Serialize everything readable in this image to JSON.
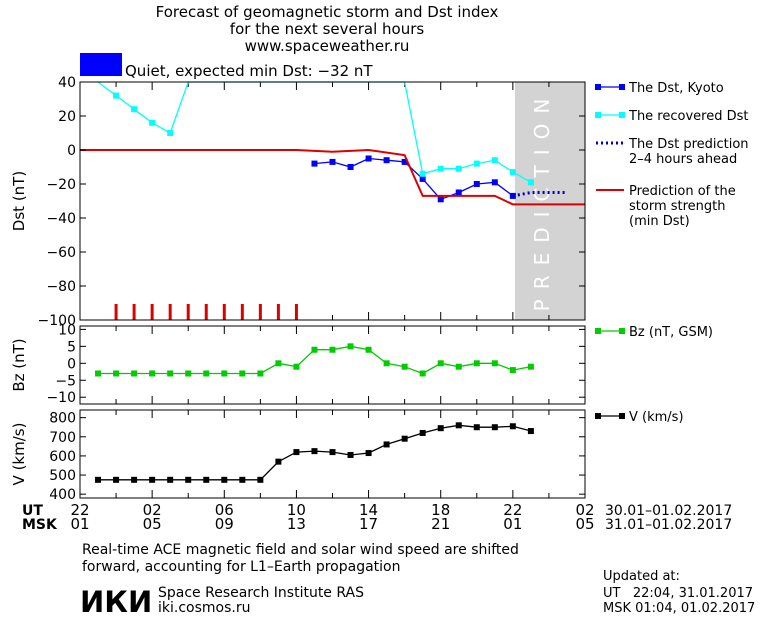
{
  "header": {
    "title_lines": [
      "Forecast of geomagnetic storm and Dst index",
      "for the next several hours",
      "www.spaceweather.ru"
    ],
    "status_text": "Quiet, expected min Dst: −32 nT",
    "status_color": "#0000ff"
  },
  "prediction_label": "PREDICTION",
  "time_axis": {
    "ut_label": "UT",
    "msk_label": "MSK",
    "ut_ticks": [
      "22",
      "02",
      "06",
      "10",
      "14",
      "18",
      "22",
      "02"
    ],
    "msk_ticks": [
      "01",
      "05",
      "09",
      "13",
      "17",
      "21",
      "01",
      "05"
    ],
    "ut_range": "30.01–01.02.2017",
    "msk_range": "31.01–01.02.2017"
  },
  "chart_data": [
    {
      "type": "line",
      "ylabel": "Dst (nT)",
      "ylim": [
        -100,
        40
      ],
      "yticks": [
        40,
        20,
        0,
        -20,
        -40,
        -60,
        -80,
        -100
      ],
      "xlim": [
        0,
        28
      ],
      "prediction_shade_x": [
        24,
        28
      ],
      "legend": {
        "placement": "right"
      },
      "series": [
        {
          "name": "The Dst, Kyoto",
          "color": "#0000ff",
          "style": "line-square",
          "x": [
            13,
            14,
            15,
            16,
            17,
            18,
            19,
            20,
            21,
            22,
            23,
            24
          ],
          "y": [
            -8,
            -7,
            -10,
            -5,
            -6,
            -7,
            -17,
            -29,
            -25,
            -20,
            -19,
            -27
          ]
        },
        {
          "name": "The recovered Dst",
          "color": "#00ffff",
          "style": "line-square",
          "x": [
            1,
            2,
            3,
            4,
            5,
            6,
            18,
            19,
            20,
            21,
            22,
            23,
            24,
            25
          ],
          "y": [
            42,
            32,
            24,
            16,
            10,
            44,
            44,
            -14,
            -11,
            -11,
            -8,
            -6,
            -13,
            -19
          ]
        },
        {
          "name": "The Dst prediction\n2–4 hours ahead",
          "color": "#0000cc",
          "style": "dotted",
          "x": [
            24,
            25,
            26,
            27
          ],
          "y": [
            -27,
            -25,
            -25,
            -25
          ]
        },
        {
          "name": "Prediction of the\nstorm strength\n(min Dst)",
          "color": "#dd0000",
          "style": "step",
          "x": [
            0,
            12,
            14,
            16,
            18,
            19,
            23,
            24,
            26,
            28
          ],
          "y": [
            0,
            0,
            -1,
            0,
            -3,
            -27,
            -27,
            -32,
            -32,
            -32
          ]
        }
      ],
      "storm_ticks": {
        "color": "#dd0000",
        "x": [
          2,
          3,
          4,
          5,
          6,
          7,
          8,
          9,
          10,
          11,
          12
        ]
      }
    },
    {
      "type": "line",
      "ylabel": "Bz (nT)",
      "ylim": [
        -12,
        11
      ],
      "yticks": [
        10,
        5,
        0,
        -5,
        -10
      ],
      "xlim": [
        0,
        28
      ],
      "series": [
        {
          "name": "Bz (nT, GSM)",
          "color": "#00cc00",
          "style": "line-square",
          "x": [
            1,
            2,
            3,
            4,
            5,
            6,
            7,
            8,
            9,
            10,
            11,
            12,
            13,
            14,
            15,
            16,
            17,
            18,
            19,
            20,
            21,
            22,
            23,
            24,
            25
          ],
          "y": [
            -3,
            -3,
            -3,
            -3,
            -3,
            -3,
            -3,
            -3,
            -3,
            -3,
            0,
            -1,
            4,
            4,
            5,
            4,
            0,
            -1,
            -3,
            0,
            -1,
            0,
            0,
            -2,
            -1
          ]
        }
      ]
    },
    {
      "type": "line",
      "ylabel": "V (km/s)",
      "ylim": [
        380,
        840
      ],
      "yticks": [
        800,
        700,
        600,
        500,
        400
      ],
      "xlim": [
        0,
        28
      ],
      "series": [
        {
          "name": "V (km/s)",
          "color": "#000000",
          "style": "line-square",
          "x": [
            1,
            2,
            3,
            4,
            5,
            6,
            7,
            8,
            9,
            10,
            11,
            12,
            13,
            14,
            15,
            16,
            17,
            18,
            19,
            20,
            21,
            22,
            23,
            24,
            25
          ],
          "y": [
            475,
            475,
            475,
            475,
            475,
            475,
            475,
            475,
            475,
            475,
            570,
            620,
            625,
            620,
            605,
            615,
            660,
            690,
            720,
            745,
            760,
            750,
            750,
            755,
            730
          ]
        }
      ]
    }
  ],
  "footer": {
    "note_line1": "Real-time ACE magnetic field and solar wind speed are shifted",
    "note_line2": "forward, accounting for L1–Earth propagation",
    "logo_text": "ИКИ",
    "institute": "Space Research Institute RAS",
    "site": "iki.cosmos.ru",
    "updated_label": "Updated at:",
    "updated_ut": "UT   22:04, 31.01.2017",
    "updated_msk": "MSK 01:04, 01.02.2017"
  }
}
